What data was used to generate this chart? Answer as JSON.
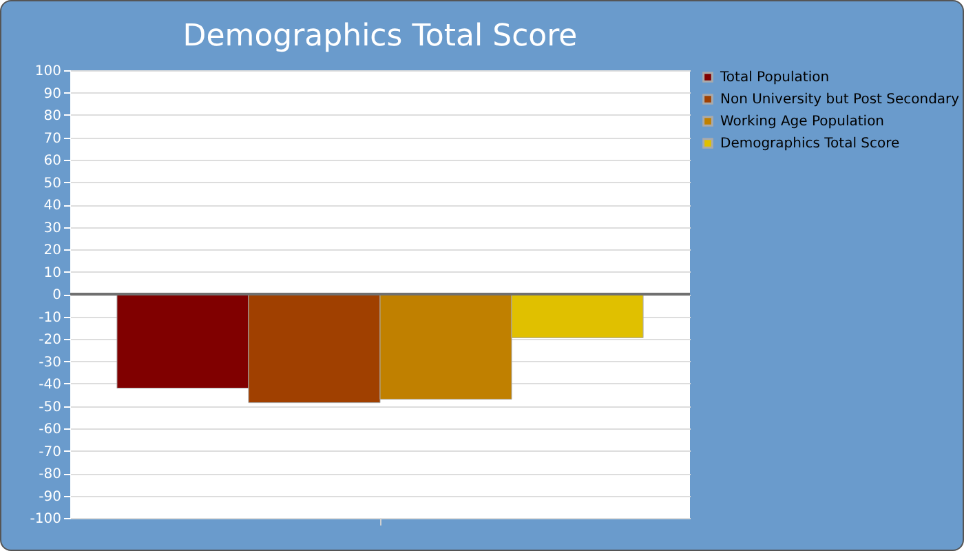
{
  "chart_data": {
    "type": "bar",
    "title": "Demographics Total Score",
    "categories": [
      null
    ],
    "series": [
      {
        "name": "Total Population",
        "color": "#800000",
        "values": [
          -42
        ]
      },
      {
        "name": "Non University but Post Secondary",
        "color": "#a04000",
        "values": [
          -48.5
        ]
      },
      {
        "name": "Working Age Population",
        "color": "#c08000",
        "values": [
          -47
        ]
      },
      {
        "name": "Demographics Total Score",
        "color": "#e0c000",
        "values": [
          -19.5
        ]
      }
    ],
    "ylim": [
      -100,
      100
    ],
    "yticks": [
      -100,
      -90,
      -80,
      -70,
      -60,
      -50,
      -40,
      -30,
      -20,
      -10,
      0,
      10,
      20,
      30,
      40,
      50,
      60,
      70,
      80,
      90,
      100
    ],
    "grid": "y",
    "legend": "top right",
    "ref_lines": [
      {
        "axis": "y",
        "value": 0,
        "color": "#707070"
      }
    ]
  }
}
